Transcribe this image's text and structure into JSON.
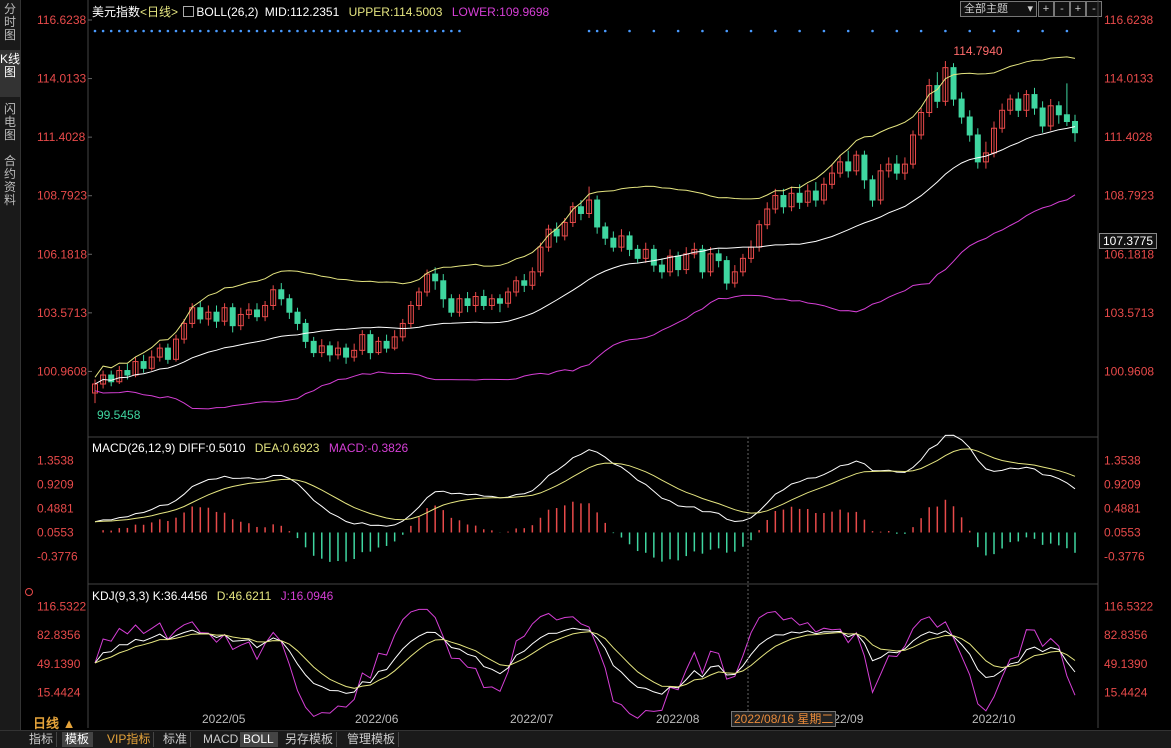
{
  "sidebar": {
    "tabs": [
      {
        "label": "分时图"
      },
      {
        "label": "K线图",
        "active": true
      },
      {
        "label": "闪电图"
      },
      {
        "label": "合约资料"
      }
    ]
  },
  "main": {
    "title": "美元指数",
    "period": "<日线>",
    "boll_label": "BOLL(26,2)",
    "mid": "MID:112.2351",
    "upper": "UPPER:114.5003",
    "lower": "LOWER:109.9698",
    "high_label": "114.7940",
    "low_label": "99.5458",
    "current_price": "107.3775",
    "yticks": [
      "116.6238",
      "114.0133",
      "111.4028",
      "108.7923",
      "106.1818",
      "103.5713",
      "100.9608"
    ]
  },
  "toolbar": {
    "dropdown": "全部主题",
    "buttons": [
      "+",
      "-",
      "+",
      "-",
      "-"
    ]
  },
  "macd": {
    "label": "MACD(26,12,9)",
    "diff": "DIFF:0.5010",
    "dea": "DEA:0.6923",
    "macd": "MACD:-0.3826",
    "yticks": [
      "1.3538",
      "0.9209",
      "0.4881",
      "0.0553",
      "-0.3776"
    ]
  },
  "kdj": {
    "label": "KDJ(9,3,3)",
    "k": "K:36.4456",
    "d": "D:46.6211",
    "j": "J:16.0946",
    "yticks": [
      "116.5322",
      "82.8356",
      "49.1390",
      "15.4424"
    ]
  },
  "xaxis": {
    "labels": [
      "2022/05",
      "2022/06",
      "2022/07",
      "2022/08",
      "2022/09",
      "2022/10"
    ],
    "highlight": "2022/08/16 星期二"
  },
  "bottom": {
    "period": "日线 ▲",
    "tabs": [
      "指标",
      "模板",
      "VIP指标",
      "标准",
      "MACD",
      "BOLL",
      "另存模板",
      "管理模板"
    ],
    "active": [
      "模板",
      "BOLL"
    ]
  },
  "colors": {
    "up": "#e84a4a",
    "down": "#3fd6a0",
    "upper": "#e5e580",
    "mid": "#ffffff",
    "lower": "#d63fd6",
    "dea": "#e5e580",
    "diff": "#ffffff",
    "j": "#d63fd6"
  },
  "chart_data": {
    "type": "candlestick",
    "price_range": [
      99.5458,
      116.6238
    ],
    "candles": [
      [
        100.0,
        100.4,
        100.6,
        99.5458
      ],
      [
        100.4,
        100.8,
        101.0,
        100.2
      ],
      [
        100.8,
        100.5,
        101.0,
        100.3
      ],
      [
        100.5,
        101.0,
        101.2,
        100.4
      ],
      [
        101.0,
        100.8,
        101.3,
        100.6
      ],
      [
        100.8,
        101.4,
        101.6,
        100.7
      ],
      [
        101.4,
        101.1,
        101.7,
        100.9
      ],
      [
        101.1,
        101.6,
        101.9,
        101.0
      ],
      [
        101.6,
        102.0,
        102.2,
        101.4
      ],
      [
        102.0,
        101.5,
        102.2,
        101.3
      ],
      [
        101.5,
        102.4,
        102.6,
        101.4
      ],
      [
        102.4,
        103.1,
        103.3,
        102.2
      ],
      [
        103.1,
        103.8,
        104.0,
        102.9
      ],
      [
        103.8,
        103.3,
        104.1,
        103.1
      ],
      [
        103.3,
        103.6,
        103.9,
        103.0
      ],
      [
        103.6,
        103.2,
        103.9,
        102.9
      ],
      [
        103.2,
        103.8,
        104.0,
        103.0
      ],
      [
        103.8,
        103.0,
        104.0,
        102.7
      ],
      [
        103.0,
        103.5,
        103.8,
        102.8
      ],
      [
        103.5,
        103.7,
        104.0,
        103.3
      ],
      [
        103.7,
        103.4,
        104.0,
        103.2
      ],
      [
        103.4,
        103.9,
        104.1,
        103.2
      ],
      [
        103.9,
        104.6,
        104.8,
        103.7
      ],
      [
        104.6,
        104.2,
        104.9,
        103.9
      ],
      [
        104.2,
        103.6,
        104.4,
        103.3
      ],
      [
        103.6,
        103.1,
        103.8,
        102.8
      ],
      [
        103.1,
        102.3,
        103.3,
        102.0
      ],
      [
        102.3,
        101.8,
        102.5,
        101.6
      ],
      [
        101.8,
        102.1,
        102.4,
        101.6
      ],
      [
        102.1,
        101.7,
        102.3,
        101.4
      ],
      [
        101.7,
        102.0,
        102.3,
        101.5
      ],
      [
        102.0,
        101.6,
        102.2,
        101.3
      ],
      [
        101.6,
        101.9,
        102.2,
        101.4
      ],
      [
        101.9,
        102.6,
        102.8,
        101.7
      ],
      [
        102.6,
        101.8,
        102.8,
        101.5
      ],
      [
        101.8,
        102.3,
        102.5,
        101.7
      ],
      [
        102.3,
        102.0,
        102.6,
        101.8
      ],
      [
        102.0,
        102.5,
        102.8,
        101.9
      ],
      [
        102.5,
        103.1,
        103.3,
        102.3
      ],
      [
        103.1,
        103.9,
        104.1,
        102.9
      ],
      [
        103.9,
        104.5,
        104.7,
        103.7
      ],
      [
        104.5,
        105.3,
        105.5,
        104.3
      ],
      [
        105.3,
        105.0,
        105.6,
        104.6
      ],
      [
        105.0,
        104.2,
        105.3,
        103.8
      ],
      [
        104.2,
        103.6,
        104.4,
        103.4
      ],
      [
        103.6,
        104.2,
        104.4,
        103.4
      ],
      [
        104.2,
        103.9,
        104.5,
        103.6
      ],
      [
        103.9,
        104.3,
        104.5,
        103.6
      ],
      [
        104.3,
        103.9,
        104.6,
        103.7
      ],
      [
        103.9,
        104.2,
        104.4,
        103.7
      ],
      [
        104.2,
        104.0,
        104.4,
        103.6
      ],
      [
        104.0,
        104.5,
        104.7,
        103.8
      ],
      [
        104.5,
        105.0,
        105.2,
        104.3
      ],
      [
        105.0,
        104.8,
        105.3,
        104.5
      ],
      [
        104.8,
        105.4,
        105.6,
        104.6
      ],
      [
        105.4,
        106.5,
        106.7,
        105.2
      ],
      [
        106.5,
        107.3,
        107.5,
        106.3
      ],
      [
        107.3,
        107.0,
        107.6,
        106.7
      ],
      [
        107.0,
        107.6,
        107.8,
        106.8
      ],
      [
        107.6,
        108.3,
        108.5,
        107.4
      ],
      [
        108.3,
        108.0,
        108.6,
        107.7
      ],
      [
        108.0,
        108.6,
        109.2,
        107.8
      ],
      [
        108.6,
        107.4,
        108.8,
        107.1
      ],
      [
        107.4,
        106.9,
        107.6,
        106.6
      ],
      [
        106.9,
        106.5,
        107.2,
        106.3
      ],
      [
        106.5,
        107.0,
        107.3,
        106.3
      ],
      [
        107.0,
        106.4,
        107.2,
        106.1
      ],
      [
        106.4,
        106.0,
        106.6,
        105.8
      ],
      [
        106.0,
        106.4,
        106.7,
        105.8
      ],
      [
        106.4,
        105.7,
        106.6,
        105.4
      ],
      [
        105.7,
        105.4,
        106.0,
        105.1
      ],
      [
        105.4,
        106.1,
        106.4,
        105.2
      ],
      [
        106.1,
        105.5,
        106.3,
        105.2
      ],
      [
        105.5,
        106.2,
        106.5,
        105.3
      ],
      [
        106.2,
        106.4,
        106.7,
        106.0
      ],
      [
        106.4,
        105.4,
        106.6,
        105.1
      ],
      [
        105.4,
        106.2,
        106.5,
        105.2
      ],
      [
        106.2,
        105.9,
        106.4,
        105.6
      ],
      [
        105.9,
        104.9,
        106.1,
        104.6
      ],
      [
        104.9,
        105.4,
        105.7,
        104.7
      ],
      [
        105.4,
        106.0,
        106.2,
        105.2
      ],
      [
        106.0,
        106.5,
        106.8,
        105.8
      ],
      [
        106.5,
        107.5,
        107.7,
        106.3
      ],
      [
        107.5,
        108.2,
        108.5,
        107.3
      ],
      [
        108.2,
        108.8,
        109.1,
        108.0
      ],
      [
        108.8,
        108.3,
        109.1,
        108.0
      ],
      [
        108.3,
        108.9,
        109.2,
        108.1
      ],
      [
        108.9,
        108.5,
        109.3,
        108.2
      ],
      [
        108.5,
        109.0,
        109.3,
        108.3
      ],
      [
        109.0,
        108.6,
        109.4,
        108.3
      ],
      [
        108.6,
        109.3,
        109.6,
        108.4
      ],
      [
        109.3,
        109.8,
        110.2,
        109.1
      ],
      [
        109.8,
        110.3,
        110.6,
        109.6
      ],
      [
        110.3,
        109.9,
        110.8,
        109.6
      ],
      [
        109.9,
        110.6,
        110.8,
        109.7
      ],
      [
        110.6,
        109.5,
        110.8,
        109.1
      ],
      [
        109.5,
        108.6,
        109.7,
        108.3
      ],
      [
        108.6,
        109.9,
        110.2,
        108.4
      ],
      [
        109.9,
        110.2,
        110.5,
        109.6
      ],
      [
        110.2,
        109.8,
        110.6,
        109.5
      ],
      [
        109.8,
        110.2,
        110.5,
        109.5
      ],
      [
        110.2,
        111.5,
        111.7,
        110.0
      ],
      [
        111.5,
        112.5,
        112.7,
        111.3
      ],
      [
        112.5,
        113.7,
        114.0,
        112.3
      ],
      [
        113.7,
        113.0,
        114.3,
        112.7
      ],
      [
        113.0,
        114.5,
        114.794,
        112.8
      ],
      [
        114.5,
        113.1,
        114.7,
        112.8
      ],
      [
        113.1,
        112.3,
        113.4,
        112.0
      ],
      [
        112.3,
        111.5,
        112.6,
        111.2
      ],
      [
        111.5,
        110.3,
        111.8,
        110.0
      ],
      [
        110.3,
        110.7,
        111.2,
        110.0
      ],
      [
        110.7,
        111.8,
        112.1,
        110.5
      ],
      [
        111.8,
        112.6,
        112.9,
        111.6
      ],
      [
        112.6,
        113.1,
        113.3,
        112.4
      ],
      [
        113.1,
        112.6,
        113.4,
        112.3
      ],
      [
        112.6,
        113.3,
        113.5,
        112.3
      ],
      [
        113.3,
        112.7,
        113.6,
        112.4
      ],
      [
        112.7,
        111.9,
        113.0,
        111.6
      ],
      [
        111.9,
        112.8,
        113.1,
        111.7
      ],
      [
        112.8,
        112.4,
        113.0,
        112.0
      ],
      [
        112.4,
        112.1,
        113.8,
        111.9
      ],
      [
        112.1,
        111.6,
        112.4,
        111.2
      ]
    ]
  }
}
